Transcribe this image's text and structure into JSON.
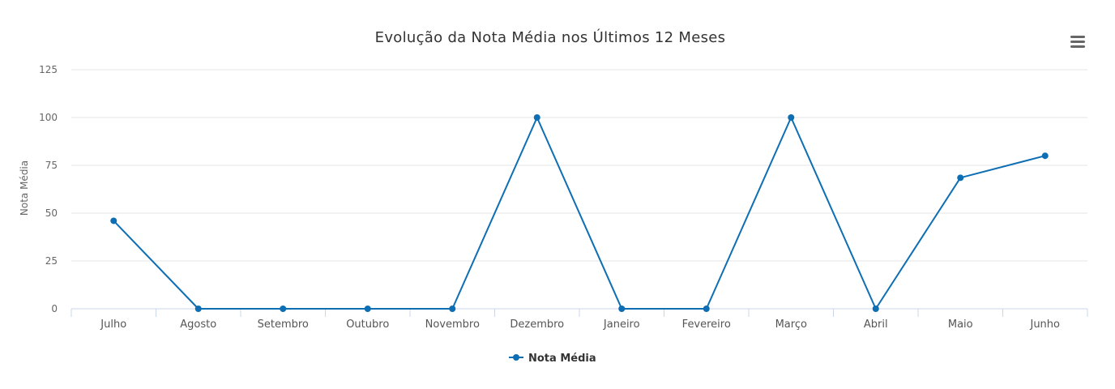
{
  "chart_data": {
    "type": "line",
    "title": "Evolução da Nota Média nos Últimos 12 Meses",
    "ylabel": "Nota Média",
    "xlabel": "",
    "categories": [
      "Julho",
      "Agosto",
      "Setembro",
      "Outubro",
      "Novembro",
      "Dezembro",
      "Janeiro",
      "Fevereiro",
      "Março",
      "Abril",
      "Maio",
      "Junho"
    ],
    "series": [
      {
        "name": "Nota Média",
        "values": [
          46,
          0,
          0,
          0,
          0,
          100,
          0,
          0,
          100,
          0,
          68.5,
          80
        ]
      }
    ],
    "ylim": [
      0,
      125
    ],
    "yticks": [
      0,
      25,
      50,
      75,
      100,
      125
    ],
    "grid": true,
    "legend_position": "bottom-center",
    "colors": {
      "series": "#0d6eb4",
      "grid": "#e6e6e6",
      "axis": "#ccd6eb"
    }
  },
  "menu": {
    "icon": "hamburger-menu-icon"
  }
}
